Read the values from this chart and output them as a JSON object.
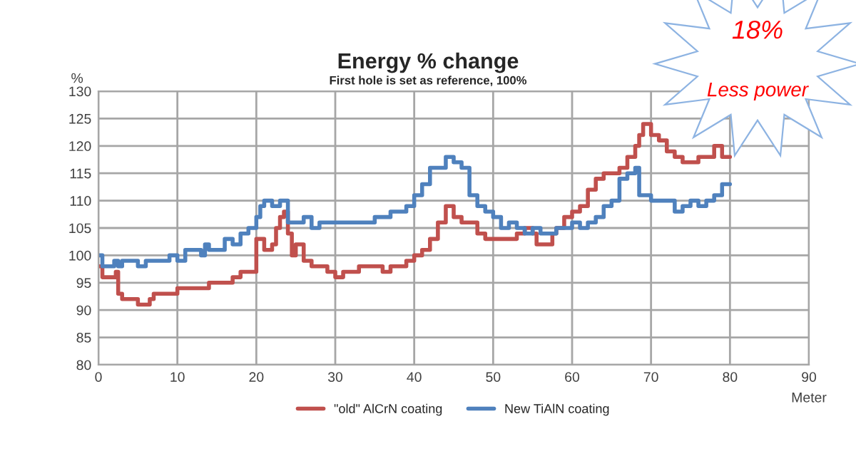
{
  "chart_data": {
    "type": "step",
    "title": "Energy % change",
    "subtitle": "First hole is set as reference, 100%",
    "xlabel": "Meter",
    "ylabel": "%",
    "series": [
      {
        "name": "\"old\" AlCrN coating",
        "color": "#c0504d",
        "x": [
          0,
          0.5,
          2,
          2.2,
          2.5,
          3,
          4,
          5,
          6,
          6.5,
          7,
          9,
          10,
          12,
          13,
          14,
          16,
          17,
          18,
          19,
          20,
          21,
          22,
          22.5,
          23,
          23.5,
          24,
          24.5,
          25,
          26,
          27,
          28,
          29,
          30,
          31,
          32,
          33,
          34,
          35,
          36,
          37,
          38,
          39,
          40,
          41,
          42,
          43,
          44,
          45,
          46,
          47,
          48,
          49,
          50,
          51,
          52,
          53,
          54,
          55,
          55.5,
          57,
          57.5,
          58,
          59,
          60,
          61,
          62,
          63,
          64,
          65,
          66,
          67,
          68,
          68.5,
          69,
          70,
          71,
          72,
          73,
          74,
          75,
          76,
          77,
          78,
          79,
          80
        ],
        "values": [
          98,
          96,
          96,
          97,
          93,
          92,
          92,
          91,
          91,
          92,
          93,
          93,
          94,
          94,
          94,
          95,
          95,
          96,
          97,
          97,
          103,
          101,
          102,
          105,
          107,
          108,
          104,
          100,
          102,
          99,
          98,
          98,
          97,
          96,
          97,
          97,
          98,
          98,
          98,
          97,
          98,
          98,
          99,
          100,
          101,
          103,
          106,
          109,
          107,
          106,
          106,
          104,
          103,
          103,
          103,
          103,
          104,
          105,
          104,
          102,
          102,
          104,
          105,
          107,
          108,
          109,
          112,
          114,
          115,
          115,
          116,
          118,
          120,
          122,
          124,
          122,
          121,
          119,
          118,
          117,
          117,
          118,
          118,
          120,
          118,
          118
        ]
      },
      {
        "name": "New TiAlN coating",
        "color": "#4f81bd",
        "x": [
          0,
          0.5,
          2,
          2.5,
          3,
          5,
          6,
          8,
          9,
          10,
          11,
          13,
          13.5,
          14,
          15,
          16,
          17,
          18,
          19,
          20,
          20.5,
          21,
          22,
          23,
          24,
          26,
          27,
          28,
          30,
          33,
          35,
          37,
          38,
          39,
          40,
          41,
          42,
          43,
          44,
          45,
          46,
          47,
          48,
          49,
          50,
          51,
          52,
          53,
          54,
          55,
          56,
          57,
          58,
          59,
          60,
          61,
          62,
          63,
          64,
          65,
          66,
          67,
          68,
          68.5,
          69,
          70,
          71,
          72,
          73,
          74,
          75,
          76,
          77,
          78,
          79,
          80
        ],
        "values": [
          100,
          98,
          99,
          98,
          99,
          98,
          99,
          99,
          100,
          99,
          101,
          100,
          102,
          101,
          101,
          103,
          102,
          104,
          105,
          107,
          109,
          110,
          109,
          110,
          106,
          107,
          105,
          106,
          106,
          106,
          107,
          108,
          108,
          109,
          111,
          113,
          116,
          116,
          118,
          117,
          116,
          111,
          109,
          108,
          107,
          105,
          106,
          105,
          104,
          105,
          104,
          104,
          105,
          105,
          106,
          105,
          106,
          107,
          109,
          110,
          114,
          115,
          116,
          111,
          111,
          110,
          110,
          110,
          108,
          109,
          110,
          109,
          110,
          111,
          113,
          113
        ]
      }
    ],
    "xlim": [
      0,
      90
    ],
    "xticks": [
      0,
      10,
      20,
      30,
      40,
      50,
      60,
      70,
      80,
      90
    ],
    "ylim": [
      80,
      130
    ],
    "yticks": [
      80,
      85,
      90,
      95,
      100,
      105,
      110,
      115,
      120,
      125,
      130
    ],
    "grid": true,
    "legend": "bottom",
    "annotations": [
      "18%",
      "Less power"
    ]
  }
}
